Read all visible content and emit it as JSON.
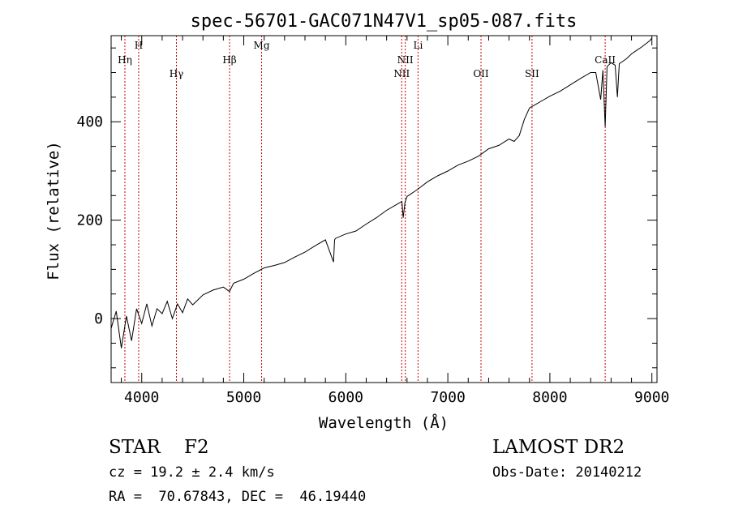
{
  "chart_data": {
    "type": "line",
    "title": "spec-56701-GAC071N47V1_sp05-087.fits",
    "xlabel": "Wavelength (Å)",
    "ylabel": "Flux (relative)",
    "xlim": [
      3700,
      9050
    ],
    "ylim": [
      -130,
      575
    ],
    "xticks": [
      "4000",
      "5000",
      "6000",
      "7000",
      "8000",
      "9000"
    ],
    "yticks": [
      "0",
      "200",
      "400"
    ],
    "grid": false,
    "series": [
      {
        "x": [
          3700,
          3750,
          3800,
          3850,
          3900,
          3950,
          4000,
          4050,
          4100,
          4150,
          4200,
          4250,
          4300,
          4350,
          4400,
          4450,
          4500,
          4600,
          4700,
          4800,
          4860,
          4900,
          5000,
          5100,
          5200,
          5300,
          5400,
          5500,
          5600,
          5700,
          5800,
          5880,
          5890,
          5900,
          6000,
          6100,
          6200,
          6300,
          6400,
          6500,
          6550,
          6563,
          6580,
          6600,
          6700,
          6800,
          6900,
          7000,
          7100,
          7200,
          7300,
          7400,
          7500,
          7600,
          7650,
          7700,
          7750,
          7800,
          7900,
          8000,
          8100,
          8200,
          8300,
          8400,
          8450,
          8498,
          8520,
          8542,
          8560,
          8600,
          8640,
          8662,
          8680,
          8750,
          8800,
          8850,
          8900,
          8950,
          8980,
          9000
        ],
        "y": [
          -20,
          15,
          -60,
          5,
          -45,
          20,
          -10,
          30,
          -15,
          20,
          10,
          35,
          0,
          30,
          12,
          40,
          28,
          48,
          58,
          64,
          55,
          72,
          80,
          92,
          103,
          108,
          114,
          125,
          135,
          148,
          160,
          115,
          160,
          163,
          172,
          178,
          192,
          205,
          220,
          232,
          238,
          205,
          236,
          248,
          262,
          278,
          290,
          300,
          312,
          320,
          330,
          345,
          352,
          365,
          360,
          372,
          405,
          428,
          440,
          452,
          462,
          475,
          488,
          500,
          500,
          445,
          505,
          390,
          512,
          520,
          515,
          450,
          518,
          528,
          538,
          545,
          552,
          560,
          565,
          570
        ]
      }
    ],
    "lines": [
      {
        "label": "Hη",
        "x": 3835,
        "row": 1
      },
      {
        "label": "H",
        "x": 3970,
        "row": 0
      },
      {
        "label": "Hγ",
        "x": 4340,
        "row": 2
      },
      {
        "label": "Hβ",
        "x": 4861,
        "row": 1
      },
      {
        "label": "Mg",
        "x": 5175,
        "row": 0
      },
      {
        "label": "NII",
        "x": 6548,
        "row": 2
      },
      {
        "label": "NII",
        "x": 6583,
        "row": 1
      },
      {
        "label": "Li",
        "x": 6708,
        "row": 0
      },
      {
        "label": "OII",
        "x": 7325,
        "row": 2
      },
      {
        "label": "SII",
        "x": 7825,
        "row": 2
      },
      {
        "label": "CaII",
        "x": 8542,
        "row": 1
      }
    ],
    "line_color": "#cc0000"
  },
  "info": {
    "object": "STAR    F2",
    "survey": "LAMOST DR2",
    "cz": "cz = 19.2 ± 2.4 km/s",
    "obs_date": "Obs-Date: 20140212",
    "coords": "RA =  70.67843, DEC =  46.19440"
  }
}
